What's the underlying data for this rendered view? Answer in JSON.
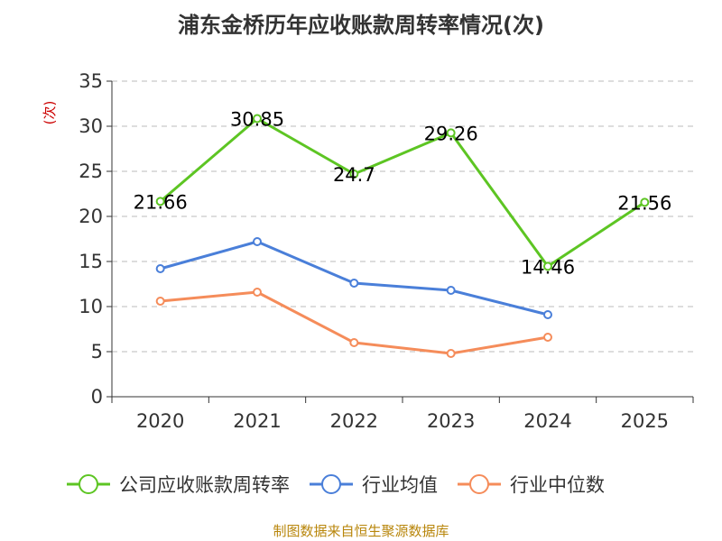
{
  "chart_data": {
    "type": "line",
    "title": "浦东金桥历年应收账款周转率情况(次)",
    "ylabel": "(次)",
    "xlabel": "",
    "categories": [
      "2020",
      "2021",
      "2022",
      "2023",
      "2024",
      "2025"
    ],
    "ylim": [
      0,
      35
    ],
    "yticks": [
      0,
      5,
      10,
      15,
      20,
      25,
      30,
      35
    ],
    "grid": true,
    "legend_position": "bottom",
    "series": [
      {
        "name": "公司应收账款周转率",
        "color": "#5dc523",
        "values": [
          21.66,
          30.85,
          24.7,
          29.26,
          14.46,
          21.56
        ],
        "labels": [
          "21.66",
          "30.85",
          "24.7",
          "29.26",
          "14.46",
          "21.56"
        ]
      },
      {
        "name": "行业均值",
        "color": "#4a7fd9",
        "values": [
          14.2,
          17.2,
          12.6,
          11.8,
          9.1,
          null
        ]
      },
      {
        "name": "行业中位数",
        "color": "#f58c5a",
        "values": [
          10.6,
          11.6,
          6.0,
          4.8,
          6.6,
          null
        ]
      }
    ],
    "source": "制图数据来自恒生聚源数据库"
  }
}
